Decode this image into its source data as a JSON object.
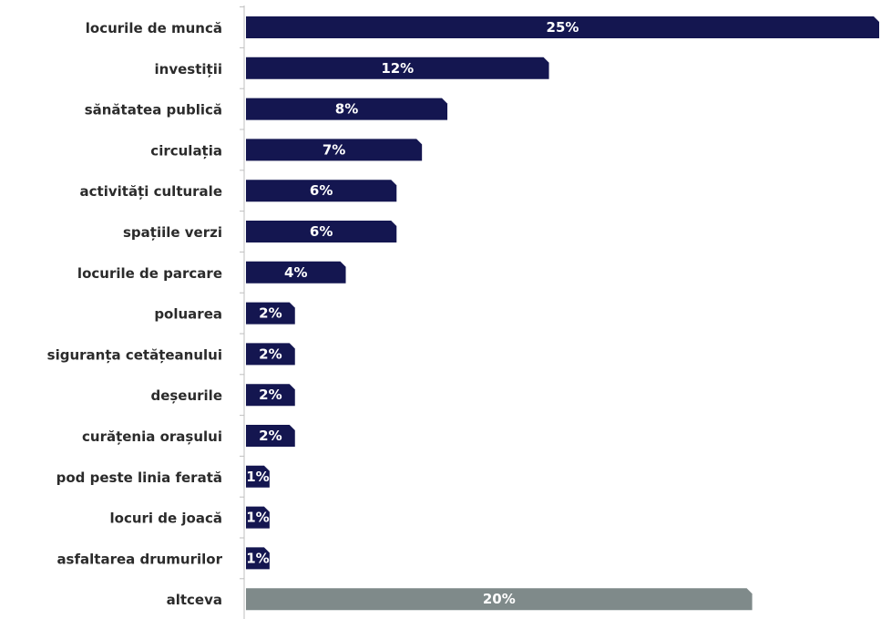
{
  "chart_data": {
    "type": "bar",
    "orientation": "horizontal",
    "categories": [
      "locurile de muncă",
      "investiții",
      "sănătatea publică",
      "circulația",
      "activități culturale",
      "spațiile verzi",
      "locurile de parcare",
      "poluarea",
      "siguranța cetățeanului",
      "deșeurile",
      "curățenia orașului",
      "pod peste linia ferată",
      "locuri de joacă",
      "asfaltarea drumurilor",
      "altceva"
    ],
    "values": [
      25,
      12,
      8,
      7,
      6,
      6,
      4,
      2,
      2,
      2,
      2,
      1,
      1,
      1,
      20
    ],
    "data_labels": [
      "25%",
      "12%",
      "8%",
      "7%",
      "6%",
      "6%",
      "4%",
      "2%",
      "2%",
      "2%",
      "2%",
      "1%",
      "1%",
      "1%",
      "20%"
    ],
    "unit": "%",
    "xlim": [
      0,
      25
    ],
    "grid": false,
    "legend": "none",
    "colors": {
      "bar": "#141650",
      "bar_other": "#7f8a8a",
      "axis": "#bfbfbf",
      "label_text": "#2b2b2b",
      "data_label_text": "#ffffff"
    }
  }
}
